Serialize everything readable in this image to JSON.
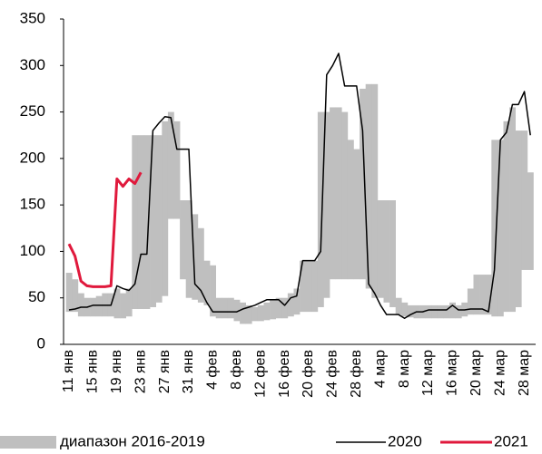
{
  "chart_data": {
    "type": "line",
    "categories": [
      "11 янв",
      null,
      null,
      null,
      "15 янв",
      null,
      null,
      null,
      "19 янв",
      null,
      null,
      null,
      "23 янв",
      null,
      null,
      null,
      "27 янв",
      null,
      null,
      null,
      "31 янв",
      null,
      null,
      null,
      "4 фев",
      null,
      null,
      null,
      "8 фев",
      null,
      null,
      null,
      "12 фев",
      null,
      null,
      null,
      "16 фев",
      null,
      null,
      null,
      "20 фев",
      null,
      null,
      null,
      "24 фев",
      null,
      null,
      null,
      "28 фев",
      null,
      null,
      null,
      "4 мар",
      null,
      null,
      null,
      "8 мар",
      null,
      null,
      null,
      "12 мар",
      null,
      null,
      null,
      "16 мар",
      null,
      null,
      null,
      "20 мар",
      null,
      null,
      null,
      "24 мар",
      null,
      null,
      null,
      "28 мар",
      null
    ],
    "series": [
      {
        "name": "диапазон 2016-2019",
        "color": "#bfbfbf",
        "type": "band",
        "low": [
          35,
          35,
          30,
          30,
          30,
          30,
          30,
          30,
          28,
          28,
          30,
          38,
          38,
          38,
          40,
          45,
          52,
          135,
          135,
          70,
          50,
          48,
          45,
          42,
          30,
          28,
          28,
          28,
          25,
          22,
          22,
          25,
          25,
          26,
          27,
          28,
          28,
          30,
          32,
          35,
          35,
          35,
          40,
          50,
          70,
          70,
          70,
          70,
          70,
          70,
          60,
          50,
          50,
          45,
          40,
          32,
          30,
          29,
          28,
          28,
          28,
          28,
          28,
          28,
          28,
          28,
          30,
          32,
          32,
          32,
          32,
          30,
          30,
          35,
          35,
          40,
          80,
          80
        ],
        "high": [
          77,
          70,
          55,
          50,
          50,
          52,
          55,
          55,
          60,
          55,
          60,
          225,
          225,
          225,
          225,
          225,
          240,
          250,
          240,
          155,
          155,
          140,
          125,
          90,
          85,
          50,
          50,
          50,
          48,
          45,
          42,
          40,
          42,
          45,
          48,
          50,
          50,
          55,
          60,
          90,
          90,
          90,
          250,
          250,
          255,
          255,
          250,
          220,
          210,
          275,
          280,
          280,
          155,
          155,
          155,
          50,
          45,
          42,
          42,
          42,
          42,
          42,
          42,
          42,
          45,
          42,
          45,
          60,
          75,
          75,
          75,
          220,
          220,
          240,
          255,
          230,
          230,
          185
        ]
      },
      {
        "name": "2020",
        "color": "#000000",
        "values": [
          37,
          38,
          40,
          40,
          42,
          42,
          42,
          42,
          63,
          60,
          58,
          65,
          97,
          97,
          230,
          238,
          245,
          244,
          210,
          210,
          210,
          65,
          58,
          45,
          35,
          35,
          35,
          35,
          35,
          38,
          40,
          42,
          45,
          48,
          48,
          48,
          42,
          50,
          52,
          90,
          90,
          90,
          100,
          290,
          300,
          313,
          278,
          278,
          278,
          230,
          65,
          55,
          42,
          32,
          32,
          32,
          28,
          32,
          35,
          35,
          37,
          37,
          37,
          37,
          42,
          37,
          37,
          38,
          38,
          38,
          35,
          80,
          220,
          228,
          258,
          258,
          272,
          225
        ]
      },
      {
        "name": "2021",
        "color": "#e0193c",
        "values": [
          108,
          95,
          68,
          63,
          62,
          62,
          62,
          63,
          178,
          170,
          178,
          173,
          185,
          null,
          null,
          null,
          null,
          null,
          null,
          null,
          null,
          null,
          null,
          null,
          null,
          null,
          null,
          null,
          null,
          null,
          null,
          null,
          null,
          null,
          null,
          null,
          null,
          null,
          null,
          null,
          null,
          null,
          null,
          null,
          null,
          null,
          null,
          null,
          null,
          null,
          null,
          null,
          null,
          null,
          null,
          null,
          null,
          null,
          null,
          null,
          null,
          null,
          null,
          null,
          null,
          null,
          null,
          null,
          null,
          null,
          null,
          null,
          null,
          null,
          null,
          null,
          null,
          null
        ]
      }
    ],
    "ylim": [
      0,
      350
    ],
    "yticks": [
      0,
      50,
      100,
      150,
      200,
      250,
      300,
      350
    ],
    "grid": false,
    "legend": "bottom"
  }
}
